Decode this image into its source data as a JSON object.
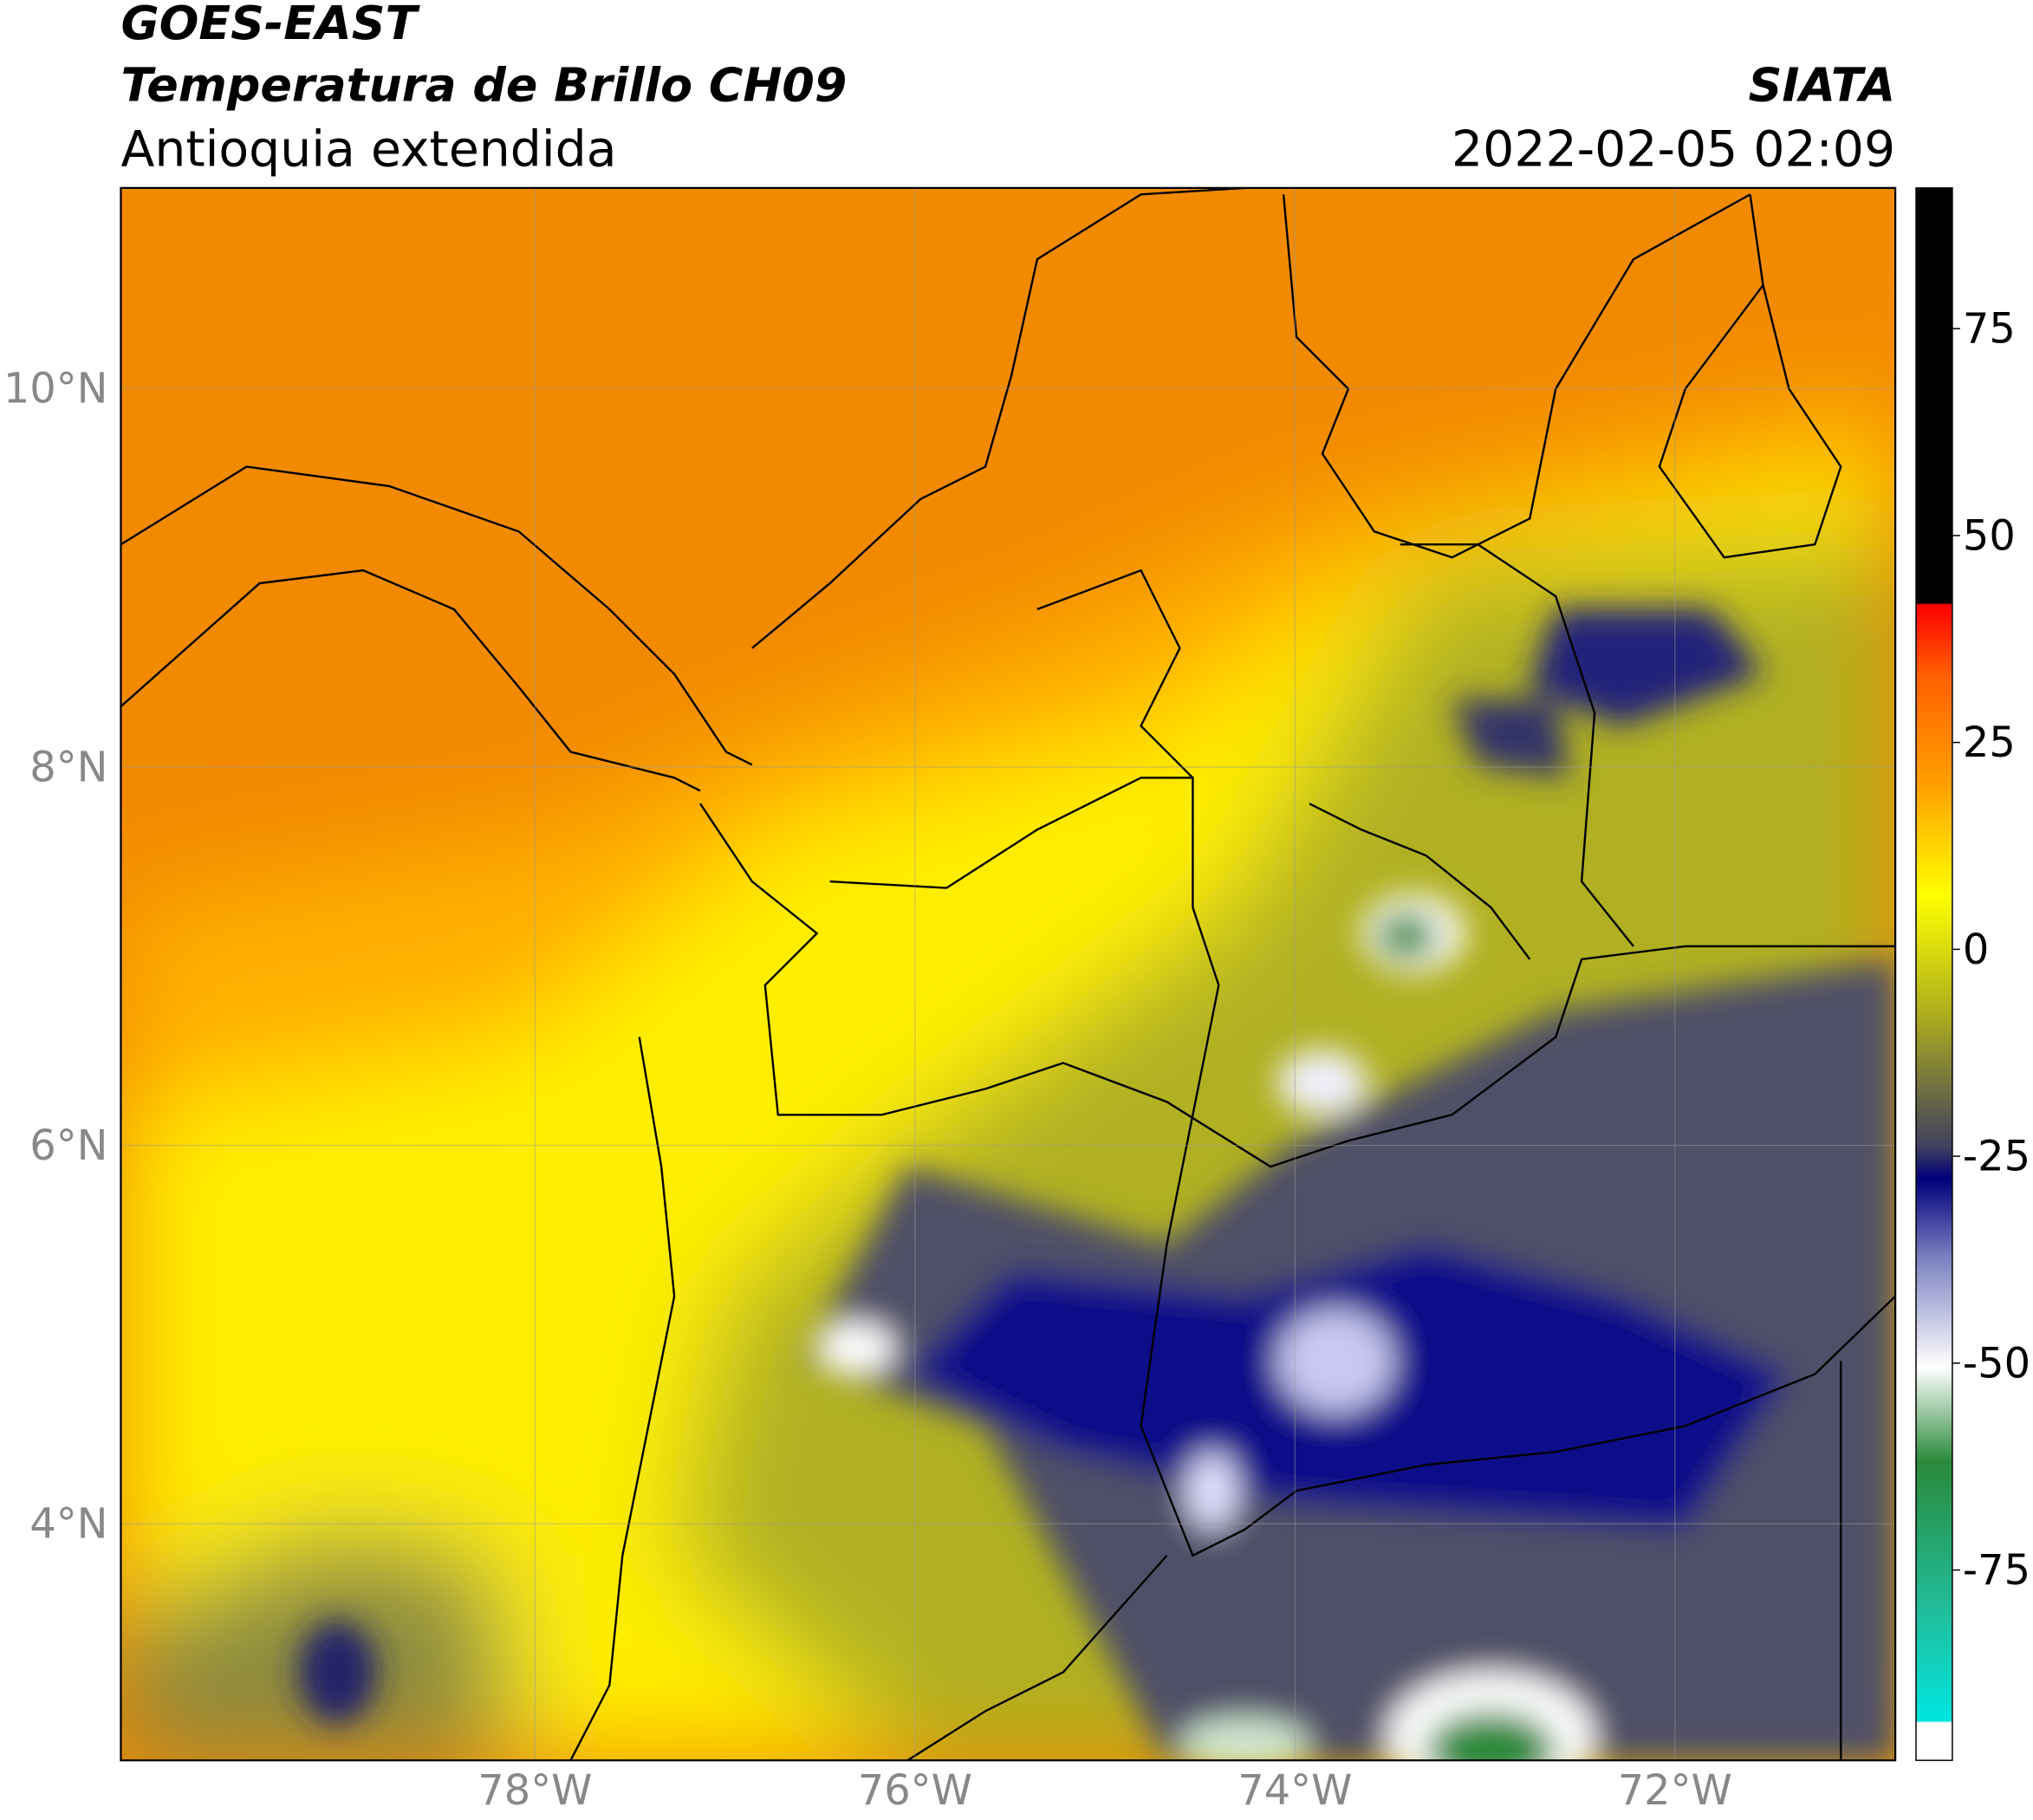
{
  "header": {
    "title": "GOES-EAST",
    "subtitle": "Temperatura de Brillo CH09",
    "region": "Antioquia extendida",
    "source": "SIATA",
    "datetime": "2022-02-05 02:09"
  },
  "map": {
    "lonlim": [
      -80.18,
      -70.84
    ],
    "latlim": [
      2.75,
      11.06
    ],
    "grid": true,
    "lonticks": [
      {
        "value": -78,
        "label": "78°W"
      },
      {
        "value": -76,
        "label": "76°W"
      },
      {
        "value": -74,
        "label": "74°W"
      },
      {
        "value": -72,
        "label": "72°W"
      }
    ],
    "latticks": [
      {
        "value": 4,
        "label": "4°N"
      },
      {
        "value": 6,
        "label": "6°N"
      },
      {
        "value": 8,
        "label": "8°N"
      },
      {
        "value": 10,
        "label": "10°N"
      }
    ]
  },
  "colorbar": {
    "lim": [
      -98,
      92
    ],
    "ticks": [
      75,
      50,
      25,
      0,
      -25,
      -50,
      -75
    ]
  }
}
